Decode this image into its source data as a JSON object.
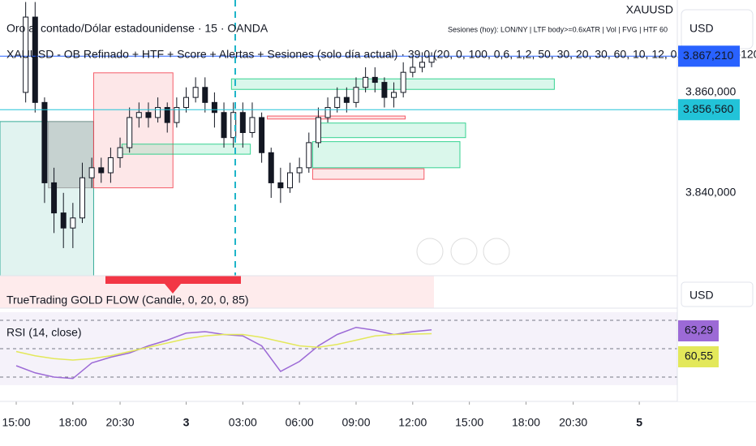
{
  "chart_data": [
    {
      "type": "candlestick",
      "title": "Oro al contado/Dólar estadounidense · 15 · OANDA",
      "subtitle": "XAUUSD - OB Refinado + HTF + Score + Alertas + Sesiones (solo día actual) · 39.0 (20, 0, 100, 0,6, 1,2, 50, 30, 20, 30, 60, 10, 12, 0,5, 50, 0800-120",
      "annotation": "Sesiones (hoy): LON/NY | LTF body>=0.6xATR | Vol | FVG | HTF 60",
      "symbol": "XAUUSD",
      "currency": "USD",
      "x": [
        0.5,
        1,
        1.5,
        2,
        2.5,
        3,
        3.5,
        4,
        4.5,
        5,
        5.5,
        6,
        6.5,
        7,
        7.5,
        8,
        8.5,
        9,
        9.5,
        10,
        10.5,
        11,
        11.5,
        12,
        12.5,
        13,
        13.5,
        14,
        14.5,
        15,
        15.5,
        16,
        16.5,
        17,
        17.5,
        18,
        18.5,
        19,
        19.5,
        20,
        20.5,
        21,
        21.5,
        22
      ],
      "open": [
        3860,
        3875,
        3858,
        3842,
        3836,
        3833,
        3835,
        3843,
        3845,
        3844,
        3847,
        3849,
        3855,
        3856,
        3855,
        3857,
        3854,
        3857,
        3859,
        3861,
        3858,
        3856,
        3851,
        3856,
        3852,
        3855,
        3848,
        3842,
        3841,
        3844,
        3845,
        3850,
        3855,
        3857,
        3859,
        3858,
        3861,
        3863,
        3862,
        3859,
        3860,
        3864,
        3865,
        3866
      ],
      "high": [
        3878,
        3878,
        3859,
        3845,
        3840,
        3838,
        3846,
        3847,
        3847,
        3849,
        3851,
        3857,
        3858,
        3858,
        3859,
        3858,
        3859,
        3861,
        3863,
        3863,
        3860,
        3858,
        3858,
        3858,
        3858,
        3856,
        3849,
        3845,
        3846,
        3847,
        3852,
        3857,
        3859,
        3861,
        3861,
        3863,
        3865,
        3865,
        3863,
        3862,
        3866,
        3867,
        3868,
        3868
      ],
      "low": [
        3858,
        3856,
        3838,
        3832,
        3829,
        3829,
        3834,
        3841,
        3842,
        3842,
        3845,
        3848,
        3853,
        3853,
        3854,
        3852,
        3853,
        3856,
        3858,
        3856,
        3853,
        3849,
        3849,
        3849,
        3851,
        3846,
        3839,
        3838,
        3840,
        3842,
        3844,
        3849,
        3854,
        3856,
        3856,
        3857,
        3860,
        3860,
        3857,
        3857,
        3859,
        3863,
        3864,
        3865
      ],
      "close": [
        3875,
        3858,
        3842,
        3836,
        3833,
        3835,
        3843,
        3845,
        3844,
        3847,
        3849,
        3855,
        3856,
        3855,
        3857,
        3854,
        3857,
        3859,
        3861,
        3858,
        3856,
        3851,
        3856,
        3852,
        3855,
        3848,
        3842,
        3841,
        3844,
        3845,
        3850,
        3855,
        3857,
        3859,
        3858,
        3861,
        3863,
        3862,
        3859,
        3860,
        3864,
        3865,
        3866,
        3867.21
      ],
      "up_color": "#089981",
      "down_color": "#f23645",
      "xlim": [
        -0.86,
        35.1
      ],
      "ylim": [
        3823.5,
        3878.4
      ],
      "yticks": [
        {
          "value": 3860,
          "label": "3.860,000"
        },
        {
          "value": 3840,
          "label": "3.840,000"
        }
      ],
      "price_labels": [
        {
          "value": 3867.21,
          "label": "3.867,210",
          "color": "#2962ff"
        },
        {
          "value": 3856.56,
          "label": "3.856,560",
          "color": "#22c3d8"
        }
      ],
      "zones": [
        {
          "x": [
            -0.86,
            4.1
          ],
          "low": 3823.5,
          "high": 3854.2,
          "color": "rgba(8,153,129,0.12)"
        },
        {
          "x": [
            1.7,
            4.1
          ],
          "low": 3841,
          "high": 3854.2,
          "color": "rgba(150,150,150,0.35)"
        },
        {
          "x": [
            4.1,
            8.3
          ],
          "low": 3841,
          "high": 3863.9,
          "color": "rgba(242,54,69,0.12)"
        },
        {
          "x": [
            5.6,
            12.4
          ],
          "low": 3847.7,
          "high": 3849.7,
          "color": "rgba(8,200,120,0.15)"
        },
        {
          "x": [
            11.4,
            28.5
          ],
          "low": 3860.6,
          "high": 3862.7,
          "color": "rgba(8,200,120,0.15)"
        },
        {
          "x": [
            16.1,
            23.8
          ],
          "low": 3851,
          "high": 3853.9,
          "color": "rgba(8,200,120,0.15)"
        },
        {
          "x": [
            15.7,
            23.5
          ],
          "low": 3845,
          "high": 3850.2,
          "color": "rgba(8,200,120,0.15)"
        },
        {
          "x": [
            15.7,
            21.6
          ],
          "low": 3842.7,
          "high": 3844.8,
          "color": "rgba(242,54,69,0.12)"
        },
        {
          "x": [
            13.3,
            20.6
          ],
          "low": 3854.7,
          "high": 3855.3,
          "color": "rgba(242,54,69,0.15)"
        }
      ]
    },
    {
      "type": "line",
      "subtitle": "TrueTrading GOLD FLOW (Candle, 0, 20, 0, 85)",
      "title": "RSI (14, close)",
      "currency": "USD",
      "x": [
        0,
        1,
        2,
        3,
        4,
        5,
        6,
        7,
        8,
        9,
        10,
        11,
        12,
        13,
        14,
        15,
        16,
        17,
        18,
        19,
        20,
        21,
        22
      ],
      "series": [
        {
          "color": "#9c6ad6",
          "values": [
            38,
            33,
            30,
            29,
            40,
            44,
            47,
            52,
            56,
            61,
            62,
            60,
            59,
            52,
            34,
            41,
            52,
            60,
            65,
            63,
            60,
            62,
            63.29
          ]
        },
        {
          "color": "#e3e85a",
          "values": [
            48,
            45,
            43,
            42,
            43,
            45,
            48,
            51,
            54,
            57,
            59,
            60,
            60,
            58,
            55,
            52,
            51,
            53,
            56,
            59,
            60,
            60.3,
            60.55
          ]
        }
      ],
      "last_labels": [
        {
          "value": 63.29,
          "label": "63,29",
          "color": "#9c6ad6"
        },
        {
          "value": 60.55,
          "label": "60,55",
          "color": "#e3e85a"
        }
      ],
      "levels": [
        30,
        50,
        70
      ],
      "ylim": [
        24.3,
        75.7
      ],
      "xlim": [
        -0.86,
        35.1
      ],
      "xticks": [
        {
          "value": 0,
          "label": "15:00"
        },
        {
          "value": 3,
          "label": "18:00"
        },
        {
          "value": 5.5,
          "label": "20:30"
        },
        {
          "value": 9,
          "label": "3"
        },
        {
          "value": 12,
          "label": "03:00"
        },
        {
          "value": 15,
          "label": "06:00"
        },
        {
          "value": 18,
          "label": "09:00"
        },
        {
          "value": 21,
          "label": "12:00"
        },
        {
          "value": 24,
          "label": "15:00"
        },
        {
          "value": 27,
          "label": "18:00"
        },
        {
          "value": 29.5,
          "label": "20:30"
        },
        {
          "value": 33,
          "label": "5"
        }
      ]
    }
  ]
}
